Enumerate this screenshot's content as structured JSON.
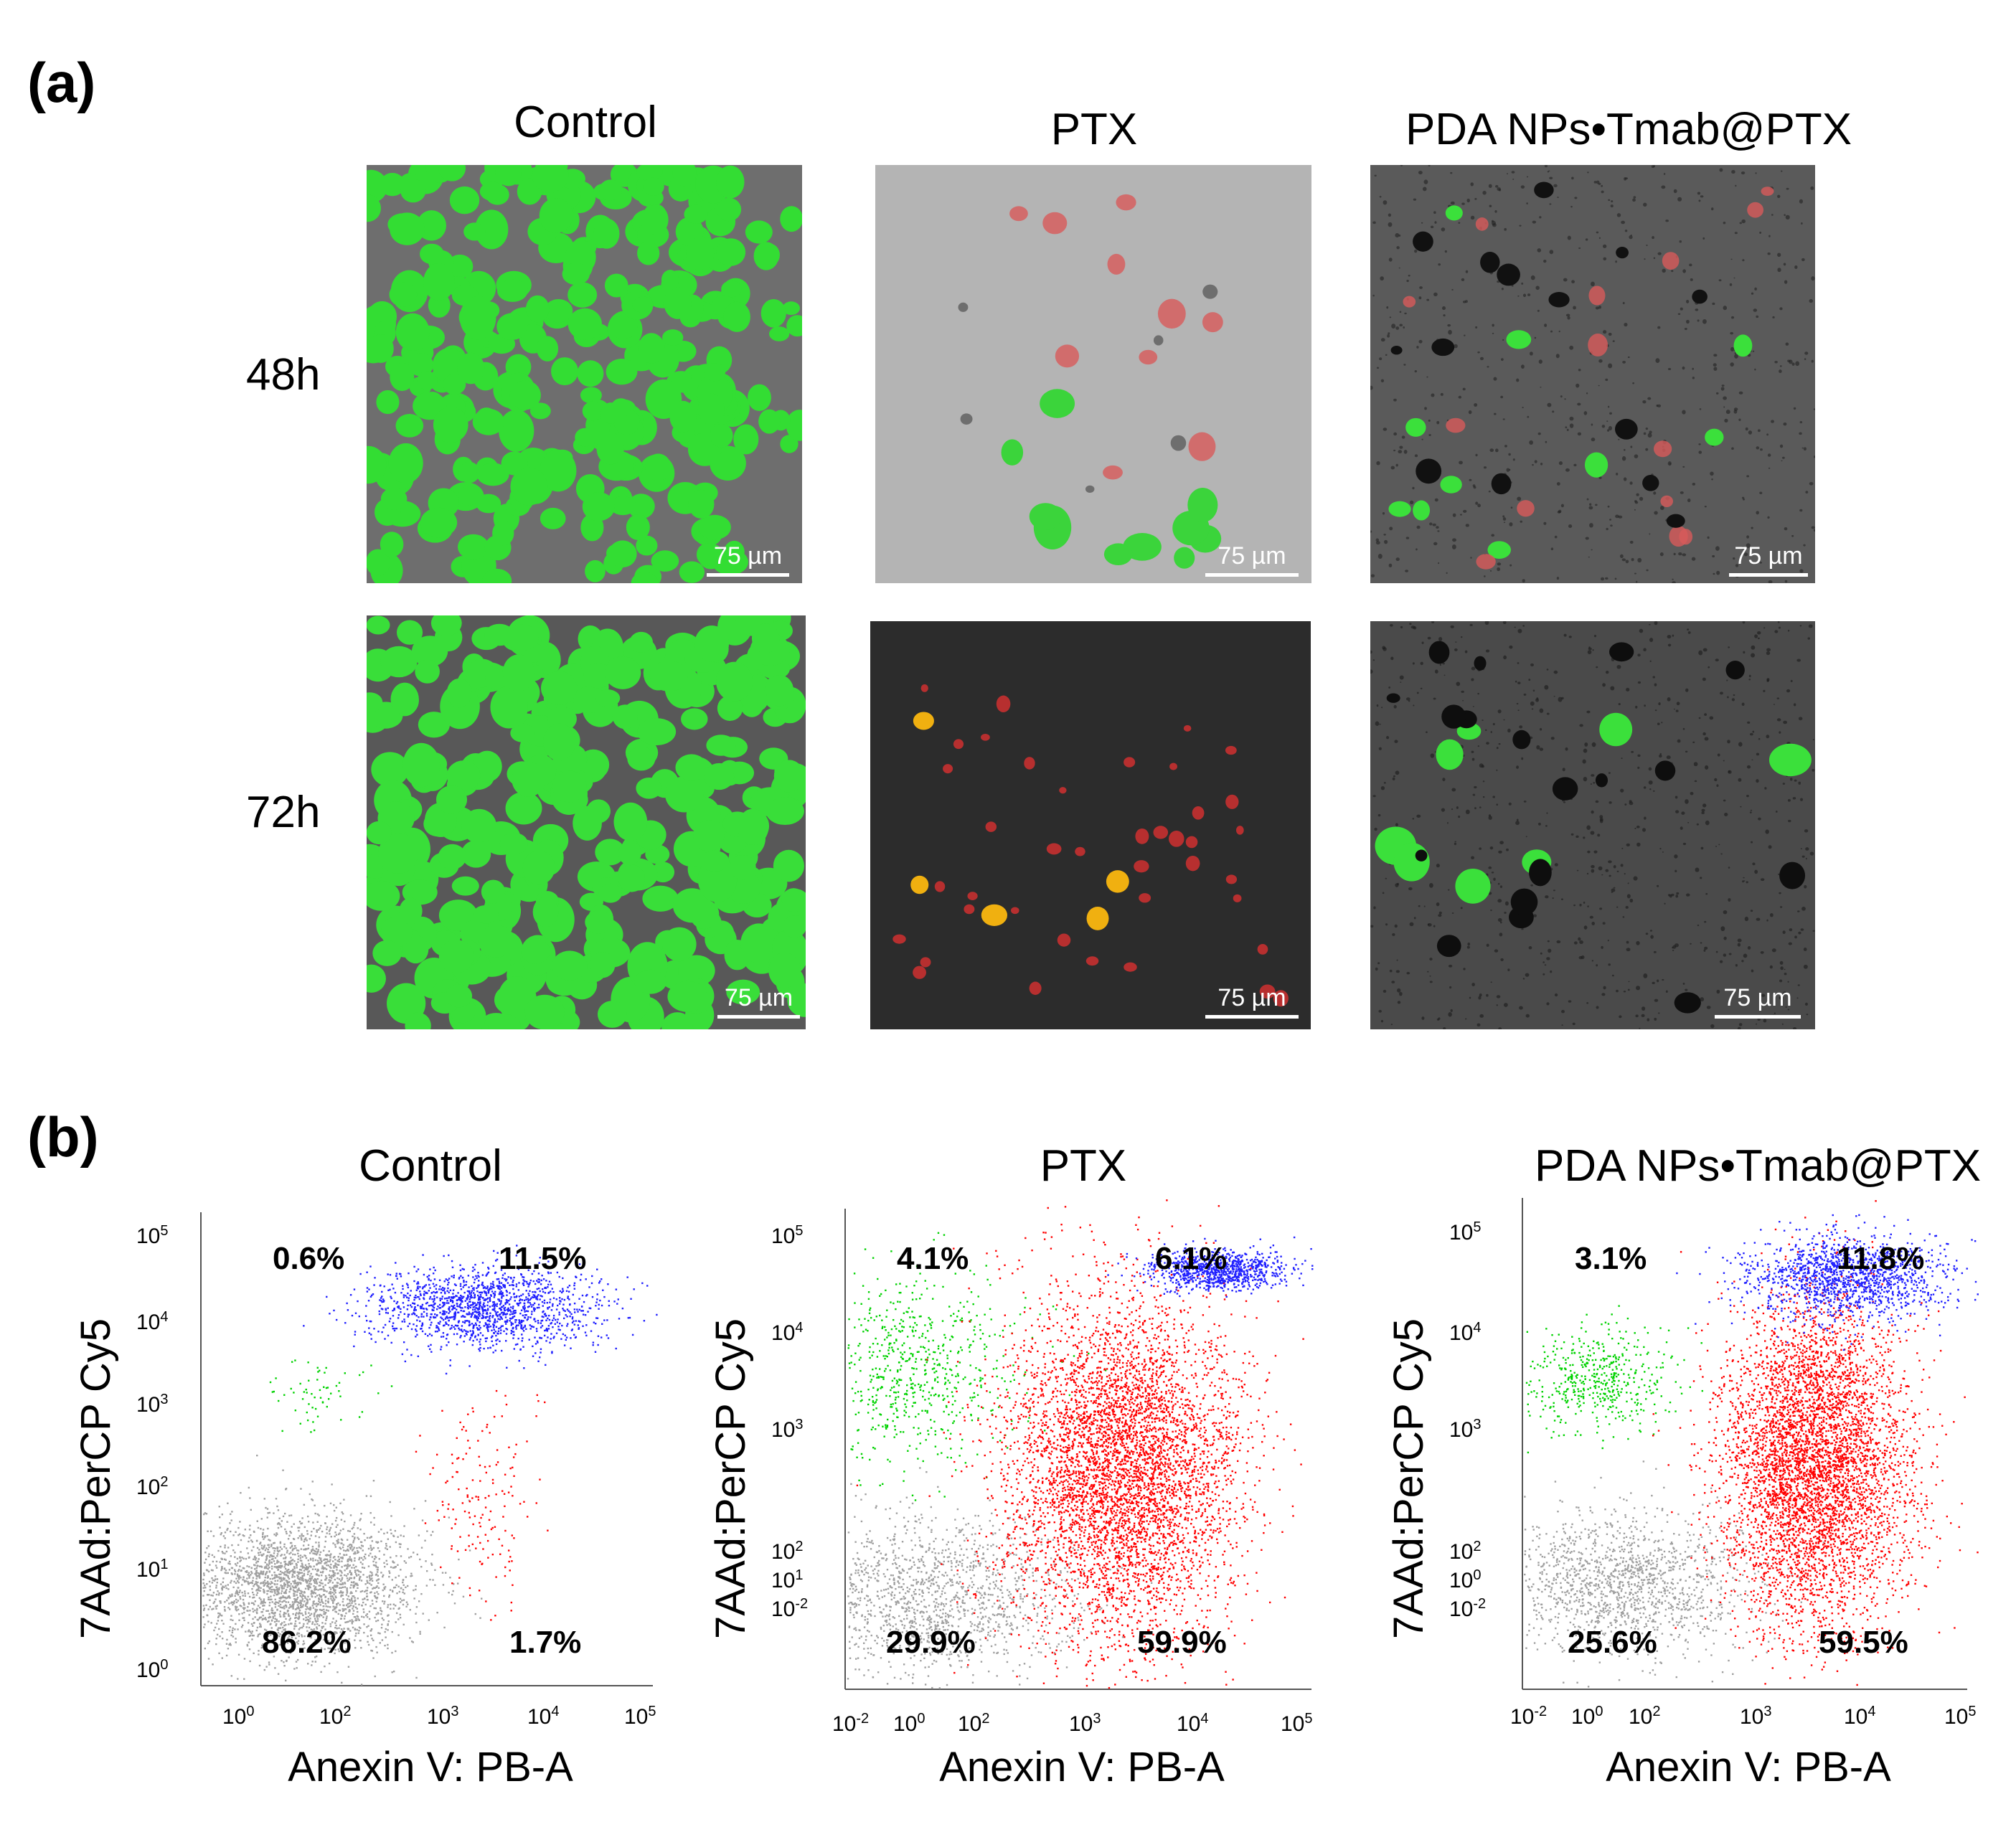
{
  "panel_a": {
    "letter": "(a)",
    "columns": [
      "Control",
      "PTX",
      "PDA NPs•Tmab@PTX"
    ],
    "rows": [
      "48h",
      "72h"
    ],
    "scale_bar": "75 µm"
  },
  "panel_b": {
    "letter": "(b)"
  },
  "chart_data": [
    {
      "type": "scatter",
      "title": "Control",
      "xlabel": "Anexin V: PB-A",
      "ylabel": "7AAd:PerCP  Cy5",
      "x_scale": "log",
      "y_scale": "log",
      "x_ticks": [
        "10^0",
        "10^2",
        "10^3",
        "10^4",
        "10^5"
      ],
      "y_ticks": [
        "10^0",
        "10^1",
        "10^2",
        "10^3",
        "10^4",
        "10^5"
      ],
      "quadrants": {
        "upper_left": "0.6%",
        "upper_right": "11.5%",
        "lower_left": "86.2%",
        "lower_right": "1.7%"
      },
      "quadrant_colors": {
        "upper_left": "#00d200",
        "upper_right": "#2020ff",
        "lower_left": "#a0a0a0",
        "lower_right": "#ff0000"
      }
    },
    {
      "type": "scatter",
      "title": "PTX",
      "xlabel": "Anexin V: PB-A",
      "ylabel": "7AAd:PerCP  Cy5",
      "x_scale": "log",
      "y_scale": "log",
      "x_ticks": [
        "10^-2",
        "10^0",
        "10^2",
        "10^3",
        "10^4",
        "10^5"
      ],
      "y_ticks": [
        "10^-2",
        "10^1",
        "10^2",
        "10^3",
        "10^4",
        "10^5"
      ],
      "quadrants": {
        "upper_left": "4.1%",
        "upper_right": "6.1%",
        "lower_left": "29.9%",
        "lower_right": "59.9%"
      },
      "quadrant_colors": {
        "upper_left": "#00d200",
        "upper_right": "#2020ff",
        "lower_left": "#a0a0a0",
        "lower_right": "#ff0000"
      }
    },
    {
      "type": "scatter",
      "title": "PDA NPs•Tmab@PTX",
      "xlabel": "Anexin V: PB-A",
      "ylabel": "7AAd:PerCP  Cy5",
      "x_scale": "log",
      "y_scale": "log",
      "x_ticks": [
        "10^-2",
        "10^0",
        "10^2",
        "10^3",
        "10^4",
        "10^5"
      ],
      "y_ticks": [
        "10^-2",
        "10^0",
        "10^2",
        "10^3",
        "10^4",
        "10^5"
      ],
      "quadrants": {
        "upper_left": "3.1%",
        "upper_right": "11.8%",
        "lower_left": "25.6%",
        "lower_right": "59.5%"
      },
      "quadrant_colors": {
        "upper_left": "#00d200",
        "upper_right": "#2020ff",
        "lower_left": "#a0a0a0",
        "lower_right": "#ff0000"
      }
    }
  ]
}
